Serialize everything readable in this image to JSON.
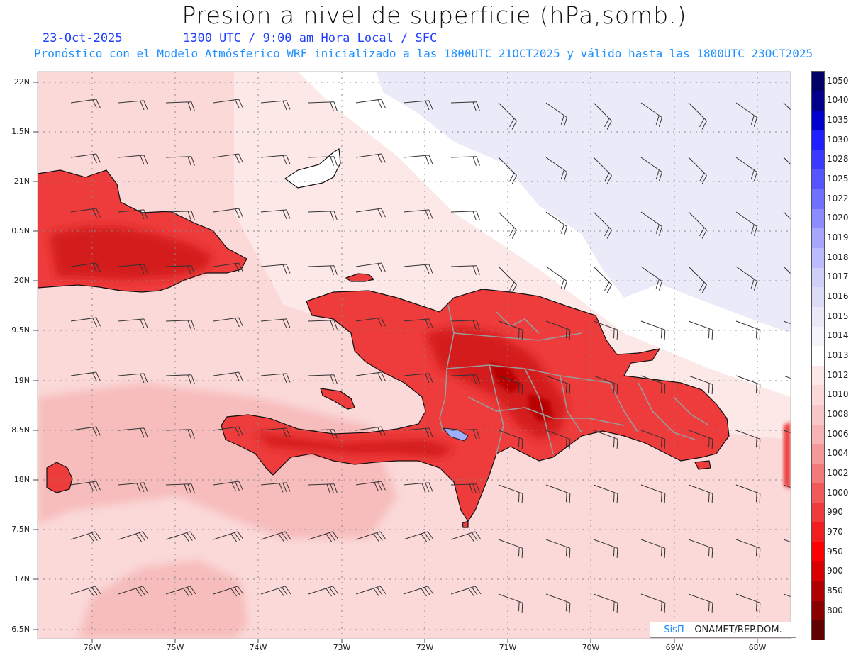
{
  "header": {
    "title": "Presion a nivel de superficie (hPa,somb.)",
    "date": "23-Oct-2025",
    "time_info": "1300 UTC / 9:00 am Hora Local / SFC",
    "forecast_info": "Pronóstico con el Modelo Atmósferico WRF inicializado a las 1800UTC_21OCT2025 y válido hasta las  1800UTC_23OCT2025"
  },
  "map": {
    "lat_labels": [
      "22N",
      "1.5N",
      "21N",
      "0.5N",
      "20N",
      "9.5N",
      "19N",
      "8.5N",
      "18N",
      "7.5N",
      "17N",
      "6.5N"
    ],
    "lon_labels": [
      "76W",
      "75W",
      "74W",
      "73W",
      "72W",
      "71W",
      "70W",
      "69W",
      "68W"
    ],
    "fill_colors": {
      "sea": "#fbd9d9",
      "sea_light": "#fde8e8",
      "sea_mid": "#f7bcbc",
      "north_white": "#ffffff",
      "north_blue": "#eaeaf8",
      "land_red": "#ee3b3b",
      "land_dark": "#b80000",
      "coast": "#111111",
      "borders": "#9a9a9a",
      "barbs": "#333333",
      "grid": "#888888"
    }
  },
  "legend": {
    "levels": [
      {
        "label": "1050",
        "color": "#000066"
      },
      {
        "label": "1040",
        "color": "#00008b"
      },
      {
        "label": "1035",
        "color": "#0000cd"
      },
      {
        "label": "1030",
        "color": "#1e1eff"
      },
      {
        "label": "1028",
        "color": "#3a3aff"
      },
      {
        "label": "1025",
        "color": "#5555ff"
      },
      {
        "label": "1022",
        "color": "#7070ff"
      },
      {
        "label": "1020",
        "color": "#8c8cff"
      },
      {
        "label": "1019",
        "color": "#a6a6ff"
      },
      {
        "label": "1018",
        "color": "#bcbcff"
      },
      {
        "label": "1017",
        "color": "#cfcff8"
      },
      {
        "label": "1016",
        "color": "#dddcf6"
      },
      {
        "label": "1015",
        "color": "#e9e9f8"
      },
      {
        "label": "1014",
        "color": "#f4f4fb"
      },
      {
        "label": "1013",
        "color": "#ffffff"
      },
      {
        "label": "1012",
        "color": "#fde8e8"
      },
      {
        "label": "1010",
        "color": "#fbd9d9"
      },
      {
        "label": "1008",
        "color": "#f8c8c8"
      },
      {
        "label": "1006",
        "color": "#f5b3b3"
      },
      {
        "label": "1004",
        "color": "#f39999"
      },
      {
        "label": "1002",
        "color": "#f27a7a"
      },
      {
        "label": "1000",
        "color": "#f05a5a"
      },
      {
        "label": "990",
        "color": "#ee3b3b"
      },
      {
        "label": "970",
        "color": "#f01e1e"
      },
      {
        "label": "950",
        "color": "#ff0000"
      },
      {
        "label": "900",
        "color": "#d80000"
      },
      {
        "label": "850",
        "color": "#b00000"
      },
      {
        "label": "800",
        "color": "#880000"
      },
      {
        "label": "",
        "color": "#600000"
      }
    ]
  },
  "credit": {
    "brand": "SisΠ",
    "org": "– ONAMET/REP.DOM."
  }
}
